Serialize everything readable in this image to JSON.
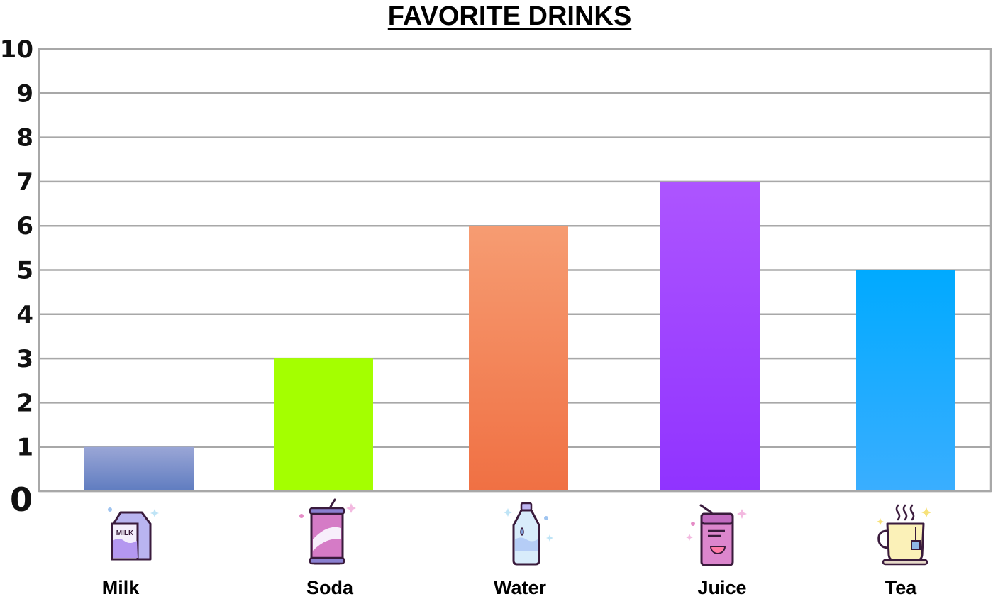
{
  "chart_data": {
    "type": "bar",
    "title": "FAVORITE DRINKS",
    "xlabel": "",
    "ylabel": "",
    "categories": [
      "Milk",
      "Soda",
      "Water",
      "Juice",
      "Tea"
    ],
    "values": [
      1,
      3,
      6,
      7,
      5
    ],
    "ylim": [
      0,
      10
    ],
    "yticks": [
      "0",
      "1",
      "2",
      "3",
      "4",
      "5",
      "6",
      "7",
      "8",
      "9",
      "10"
    ],
    "grid": true,
    "legend": "none",
    "bar_colors": [
      [
        "#9aa6d6",
        "#5f7cc0"
      ],
      [
        "#a4ff00",
        "#a4ff00"
      ],
      [
        "#f69c72",
        "#f07043"
      ],
      [
        "#ad55ff",
        "#9033ff"
      ],
      [
        "#00aaff",
        "#3aaeff"
      ]
    ],
    "icons": [
      "milk-carton-icon",
      "soda-can-icon",
      "water-bottle-icon",
      "juice-box-icon",
      "tea-cup-icon"
    ],
    "icon_label": "MILK"
  }
}
